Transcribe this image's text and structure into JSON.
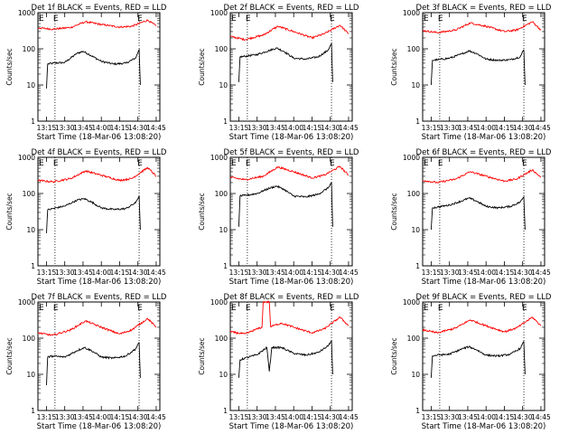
{
  "axis_common": {
    "xlabel": "Start Time (18-Mar-06 13:08:20)",
    "ylabel": "Counts/sec",
    "x_tick_labels": [
      "13:15",
      "13:30",
      "13:45",
      "14:00",
      "14:15",
      "14:30",
      "14:45"
    ],
    "y_tick_labels": [
      "1",
      "10",
      "100",
      "1000"
    ],
    "marker_letter": "E",
    "colors": {
      "events": "#000000",
      "lld": "#ff0000"
    }
  },
  "chart_data": [
    {
      "type": "line",
      "title": "Det 1f BLACK = Events, RED = LLD",
      "yscale": "log",
      "ylim": [
        1,
        1000
      ],
      "xlim": [
        "13:08",
        "14:48"
      ],
      "x_ticks": [
        "13:15",
        "13:30",
        "13:45",
        "14:00",
        "14:15",
        "14:30",
        "14:45"
      ],
      "y_ticks": [
        1,
        10,
        100,
        1000
      ],
      "vlines": [
        "13:22",
        "14:31"
      ],
      "series": [
        {
          "name": "Events",
          "color": "#000000",
          "x": [
            "13:15",
            "13:16",
            "13:20",
            "13:30",
            "13:40",
            "13:45",
            "13:50",
            "14:00",
            "14:10",
            "14:20",
            "14:28",
            "14:31",
            "14:32"
          ],
          "y": [
            8,
            38,
            40,
            42,
            75,
            85,
            70,
            45,
            38,
            40,
            55,
            95,
            10
          ]
        },
        {
          "name": "LLD",
          "color": "#ff0000",
          "x": [
            "13:08",
            "13:20",
            "13:35",
            "13:47",
            "14:00",
            "14:15",
            "14:25",
            "14:38",
            "14:45"
          ],
          "y": [
            380,
            350,
            390,
            560,
            470,
            400,
            420,
            620,
            430
          ]
        }
      ]
    },
    {
      "type": "line",
      "title": "Det 2f BLACK = Events, RED = LLD",
      "yscale": "log",
      "ylim": [
        1,
        1000
      ],
      "xlim": [
        "13:08",
        "14:48"
      ],
      "x_ticks": [
        "13:15",
        "13:30",
        "13:45",
        "14:00",
        "14:15",
        "14:30",
        "14:45"
      ],
      "y_ticks": [
        1,
        10,
        100,
        1000
      ],
      "vlines": [
        "13:22",
        "14:31"
      ],
      "series": [
        {
          "name": "Events",
          "color": "#000000",
          "x": [
            "13:15",
            "13:16",
            "13:20",
            "13:30",
            "13:40",
            "13:46",
            "13:52",
            "14:00",
            "14:10",
            "14:20",
            "14:28",
            "14:31",
            "14:32"
          ],
          "y": [
            12,
            60,
            62,
            70,
            90,
            105,
            85,
            55,
            52,
            60,
            90,
            140,
            12
          ]
        },
        {
          "name": "LLD",
          "color": "#ff0000",
          "x": [
            "13:08",
            "13:20",
            "13:35",
            "13:47",
            "14:00",
            "14:15",
            "14:25",
            "14:38",
            "14:45"
          ],
          "y": [
            220,
            180,
            240,
            420,
            300,
            200,
            260,
            450,
            260
          ]
        }
      ]
    },
    {
      "type": "line",
      "title": "Det 3f BLACK = Events, RED = LLD",
      "yscale": "log",
      "ylim": [
        1,
        1000
      ],
      "xlim": [
        "13:08",
        "14:48"
      ],
      "x_ticks": [
        "13:15",
        "13:30",
        "13:45",
        "14:00",
        "14:15",
        "14:30",
        "14:45"
      ],
      "y_ticks": [
        1,
        10,
        100,
        1000
      ],
      "vlines": [
        "13:22",
        "14:31"
      ],
      "series": [
        {
          "name": "Events",
          "color": "#000000",
          "x": [
            "13:15",
            "13:16",
            "13:20",
            "13:30",
            "13:40",
            "13:46",
            "13:52",
            "14:00",
            "14:10",
            "14:20",
            "14:28",
            "14:31",
            "14:32"
          ],
          "y": [
            10,
            48,
            50,
            55,
            72,
            88,
            75,
            52,
            48,
            50,
            60,
            95,
            10
          ]
        },
        {
          "name": "LLD",
          "color": "#ff0000",
          "x": [
            "13:08",
            "13:20",
            "13:35",
            "13:47",
            "14:00",
            "14:15",
            "14:25",
            "14:38",
            "14:45"
          ],
          "y": [
            320,
            280,
            330,
            520,
            420,
            300,
            330,
            560,
            330
          ]
        }
      ]
    },
    {
      "type": "line",
      "title": "Det 4f BLACK = Events, RED = LLD",
      "yscale": "log",
      "ylim": [
        1,
        1000
      ],
      "xlim": [
        "13:08",
        "14:48"
      ],
      "x_ticks": [
        "13:15",
        "13:30",
        "13:45",
        "14:00",
        "14:15",
        "14:30",
        "14:45"
      ],
      "y_ticks": [
        1,
        10,
        100,
        1000
      ],
      "vlines": [
        "13:22",
        "14:31"
      ],
      "series": [
        {
          "name": "Events",
          "color": "#000000",
          "x": [
            "13:15",
            "13:16",
            "13:20",
            "13:30",
            "13:40",
            "13:46",
            "13:52",
            "14:00",
            "14:10",
            "14:20",
            "14:28",
            "14:31",
            "14:32"
          ],
          "y": [
            8,
            35,
            38,
            45,
            65,
            72,
            58,
            40,
            36,
            38,
            55,
            85,
            10
          ]
        },
        {
          "name": "LLD",
          "color": "#ff0000",
          "x": [
            "13:08",
            "13:20",
            "13:35",
            "13:47",
            "14:00",
            "14:15",
            "14:25",
            "14:38",
            "14:45"
          ],
          "y": [
            230,
            210,
            260,
            420,
            320,
            230,
            260,
            520,
            300
          ]
        }
      ]
    },
    {
      "type": "line",
      "title": "Det 5f BLACK = Events, RED = LLD",
      "yscale": "log",
      "ylim": [
        1,
        1000
      ],
      "xlim": [
        "13:08",
        "14:48"
      ],
      "x_ticks": [
        "13:15",
        "13:30",
        "13:45",
        "14:00",
        "14:15",
        "14:30",
        "14:45"
      ],
      "y_ticks": [
        1,
        10,
        100,
        1000
      ],
      "vlines": [
        "13:22",
        "14:31"
      ],
      "series": [
        {
          "name": "Events",
          "color": "#000000",
          "x": [
            "13:15",
            "13:16",
            "13:20",
            "13:30",
            "13:40",
            "13:46",
            "13:52",
            "14:00",
            "14:10",
            "14:20",
            "14:28",
            "14:31",
            "14:32"
          ],
          "y": [
            12,
            85,
            88,
            100,
            140,
            160,
            130,
            85,
            80,
            95,
            140,
            200,
            12
          ]
        },
        {
          "name": "LLD",
          "color": "#ff0000",
          "x": [
            "13:08",
            "13:20",
            "13:35",
            "13:47",
            "14:00",
            "14:15",
            "14:25",
            "14:38",
            "14:45"
          ],
          "y": [
            280,
            240,
            300,
            540,
            400,
            270,
            320,
            560,
            320
          ]
        }
      ]
    },
    {
      "type": "line",
      "title": "Det 6f BLACK = Events, RED = LLD",
      "yscale": "log",
      "ylim": [
        1,
        1000
      ],
      "xlim": [
        "13:08",
        "14:48"
      ],
      "x_ticks": [
        "13:15",
        "13:30",
        "13:45",
        "14:00",
        "14:15",
        "14:30",
        "14:45"
      ],
      "y_ticks": [
        1,
        10,
        100,
        1000
      ],
      "vlines": [
        "13:22",
        "14:31"
      ],
      "series": [
        {
          "name": "Events",
          "color": "#000000",
          "x": [
            "13:15",
            "13:16",
            "13:20",
            "13:30",
            "13:40",
            "13:46",
            "13:52",
            "14:00",
            "14:10",
            "14:20",
            "14:28",
            "14:31",
            "14:32"
          ],
          "y": [
            10,
            40,
            42,
            48,
            62,
            75,
            62,
            44,
            40,
            44,
            58,
            80,
            10
          ]
        },
        {
          "name": "LLD",
          "color": "#ff0000",
          "x": [
            "13:08",
            "13:20",
            "13:35",
            "13:47",
            "14:00",
            "14:15",
            "14:25",
            "14:38",
            "14:45"
          ],
          "y": [
            230,
            200,
            250,
            400,
            300,
            220,
            250,
            450,
            280
          ]
        }
      ]
    },
    {
      "type": "line",
      "title": "Det 7f BLACK = Events, RED = LLD",
      "yscale": "log",
      "ylim": [
        1,
        1000
      ],
      "xlim": [
        "13:08",
        "14:48"
      ],
      "x_ticks": [
        "13:15",
        "13:30",
        "13:45",
        "14:00",
        "14:15",
        "14:30",
        "14:45"
      ],
      "y_ticks": [
        1,
        10,
        100,
        1000
      ],
      "vlines": [
        "13:22",
        "14:31"
      ],
      "series": [
        {
          "name": "Events",
          "color": "#000000",
          "x": [
            "13:15",
            "13:16",
            "13:20",
            "13:30",
            "13:40",
            "13:46",
            "13:52",
            "14:00",
            "14:10",
            "14:20",
            "14:28",
            "14:31",
            "14:32"
          ],
          "y": [
            5,
            30,
            32,
            30,
            45,
            55,
            45,
            30,
            28,
            32,
            50,
            75,
            8
          ]
        },
        {
          "name": "LLD",
          "color": "#ff0000",
          "x": [
            "13:08",
            "13:20",
            "13:35",
            "13:47",
            "14:00",
            "14:15",
            "14:25",
            "14:38",
            "14:45"
          ],
          "y": [
            140,
            120,
            170,
            300,
            200,
            130,
            170,
            350,
            200
          ]
        }
      ]
    },
    {
      "type": "line",
      "title": "Det 8f BLACK = Events, RED = LLD",
      "yscale": "log",
      "ylim": [
        1,
        1000
      ],
      "xlim": [
        "13:08",
        "14:48"
      ],
      "x_ticks": [
        "13:15",
        "13:30",
        "13:45",
        "14:00",
        "14:15",
        "14:30",
        "14:45"
      ],
      "y_ticks": [
        1,
        10,
        100,
        1000
      ],
      "vlines": [
        "13:22",
        "14:31"
      ],
      "series": [
        {
          "name": "Events",
          "color": "#000000",
          "x": [
            "13:15",
            "13:16",
            "13:20",
            "13:30",
            "13:38",
            "13:40",
            "13:42",
            "13:50",
            "14:00",
            "14:10",
            "14:20",
            "14:28",
            "14:31",
            "14:32"
          ],
          "y": [
            8,
            25,
            28,
            35,
            55,
            12,
            55,
            55,
            38,
            34,
            40,
            60,
            85,
            10
          ]
        },
        {
          "name": "LLD",
          "color": "#ff0000",
          "x": [
            "13:08",
            "13:20",
            "13:30",
            "13:34",
            "13:35",
            "13:40",
            "13:41",
            "13:50",
            "14:00",
            "14:15",
            "14:25",
            "14:38",
            "14:45"
          ],
          "y": [
            150,
            130,
            180,
            200,
            1000,
            1000,
            210,
            260,
            200,
            140,
            180,
            380,
            220
          ]
        }
      ]
    },
    {
      "type": "line",
      "title": "Det 9f BLACK = Events, RED = LLD",
      "yscale": "log",
      "ylim": [
        1,
        1000
      ],
      "xlim": [
        "13:08",
        "14:48"
      ],
      "x_ticks": [
        "13:15",
        "13:30",
        "13:45",
        "14:00",
        "14:15",
        "14:30",
        "14:45"
      ],
      "y_ticks": [
        1,
        10,
        100,
        1000
      ],
      "vlines": [
        "13:22",
        "14:31"
      ],
      "series": [
        {
          "name": "Events",
          "color": "#000000",
          "x": [
            "13:15",
            "13:16",
            "13:20",
            "13:30",
            "13:40",
            "13:46",
            "13:52",
            "14:00",
            "14:10",
            "14:20",
            "14:28",
            "14:31",
            "14:32"
          ],
          "y": [
            8,
            32,
            34,
            36,
            50,
            58,
            48,
            34,
            32,
            36,
            52,
            80,
            10
          ]
        },
        {
          "name": "LLD",
          "color": "#ff0000",
          "x": [
            "13:08",
            "13:20",
            "13:35",
            "13:47",
            "14:00",
            "14:15",
            "14:25",
            "14:38",
            "14:45"
          ],
          "y": [
            170,
            140,
            190,
            320,
            220,
            150,
            190,
            380,
            220
          ]
        }
      ]
    }
  ]
}
